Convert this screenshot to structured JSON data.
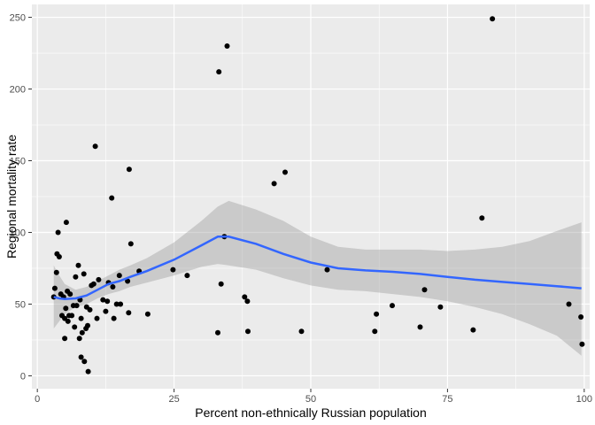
{
  "chart_data": {
    "type": "scatter",
    "title": "",
    "xlabel": "Percent non-ethnically Russian population",
    "ylabel": "Regional mortality rate",
    "xlim": [
      -1,
      101
    ],
    "ylim": [
      -9,
      259
    ],
    "x_ticks": [
      0,
      25,
      50,
      75,
      100
    ],
    "x_tick_labels": [
      "0",
      "25",
      "50",
      "75",
      "100"
    ],
    "y_ticks": [
      0,
      50,
      100,
      150,
      200,
      250
    ],
    "y_tick_labels": [
      "0",
      "50",
      "100",
      "150",
      "200",
      "250"
    ],
    "grid": true,
    "legend": "none",
    "colors": {
      "panel": "#ebebeb",
      "grid_major": "#ffffff",
      "points": "#000000",
      "smooth_line": "#3366ff",
      "ribbon": "#999999"
    },
    "points": [
      {
        "x": 3.0,
        "y": 55
      },
      {
        "x": 3.2,
        "y": 61
      },
      {
        "x": 3.5,
        "y": 72
      },
      {
        "x": 3.6,
        "y": 85
      },
      {
        "x": 3.8,
        "y": 100
      },
      {
        "x": 4.0,
        "y": 83
      },
      {
        "x": 4.3,
        "y": 57
      },
      {
        "x": 4.5,
        "y": 42
      },
      {
        "x": 4.8,
        "y": 55
      },
      {
        "x": 5.0,
        "y": 40
      },
      {
        "x": 5.2,
        "y": 47
      },
      {
        "x": 5.3,
        "y": 107
      },
      {
        "x": 5.5,
        "y": 59
      },
      {
        "x": 5.6,
        "y": 38
      },
      {
        "x": 5.8,
        "y": 42
      },
      {
        "x": 5.0,
        "y": 26
      },
      {
        "x": 6.0,
        "y": 57
      },
      {
        "x": 6.3,
        "y": 42
      },
      {
        "x": 6.6,
        "y": 49
      },
      {
        "x": 6.8,
        "y": 34
      },
      {
        "x": 7.0,
        "y": 69
      },
      {
        "x": 7.2,
        "y": 49
      },
      {
        "x": 7.5,
        "y": 77
      },
      {
        "x": 7.7,
        "y": 26
      },
      {
        "x": 7.8,
        "y": 53
      },
      {
        "x": 8.0,
        "y": 40
      },
      {
        "x": 8.0,
        "y": 13
      },
      {
        "x": 8.2,
        "y": 30
      },
      {
        "x": 8.5,
        "y": 71
      },
      {
        "x": 8.6,
        "y": 10
      },
      {
        "x": 8.9,
        "y": 33
      },
      {
        "x": 9.0,
        "y": 48
      },
      {
        "x": 9.2,
        "y": 35
      },
      {
        "x": 9.3,
        "y": 3
      },
      {
        "x": 9.6,
        "y": 46
      },
      {
        "x": 9.9,
        "y": 63
      },
      {
        "x": 10.3,
        "y": 64
      },
      {
        "x": 10.6,
        "y": 160
      },
      {
        "x": 10.9,
        "y": 40
      },
      {
        "x": 11.2,
        "y": 67
      },
      {
        "x": 12.0,
        "y": 53
      },
      {
        "x": 12.5,
        "y": 45
      },
      {
        "x": 12.8,
        "y": 52
      },
      {
        "x": 13.0,
        "y": 65
      },
      {
        "x": 13.6,
        "y": 124
      },
      {
        "x": 13.8,
        "y": 62
      },
      {
        "x": 14.0,
        "y": 40
      },
      {
        "x": 14.5,
        "y": 50
      },
      {
        "x": 15.0,
        "y": 70
      },
      {
        "x": 15.2,
        "y": 50
      },
      {
        "x": 16.5,
        "y": 66
      },
      {
        "x": 16.7,
        "y": 44
      },
      {
        "x": 16.8,
        "y": 144
      },
      {
        "x": 17.1,
        "y": 92
      },
      {
        "x": 18.6,
        "y": 73
      },
      {
        "x": 20.2,
        "y": 43
      },
      {
        "x": 24.8,
        "y": 74
      },
      {
        "x": 27.4,
        "y": 70
      },
      {
        "x": 33.0,
        "y": 30
      },
      {
        "x": 33.2,
        "y": 212
      },
      {
        "x": 33.6,
        "y": 64
      },
      {
        "x": 34.2,
        "y": 97
      },
      {
        "x": 34.7,
        "y": 230
      },
      {
        "x": 37.9,
        "y": 55
      },
      {
        "x": 38.4,
        "y": 52
      },
      {
        "x": 38.5,
        "y": 31
      },
      {
        "x": 43.3,
        "y": 134
      },
      {
        "x": 45.3,
        "y": 142
      },
      {
        "x": 48.3,
        "y": 31
      },
      {
        "x": 53.0,
        "y": 74
      },
      {
        "x": 61.7,
        "y": 31
      },
      {
        "x": 62.0,
        "y": 43
      },
      {
        "x": 64.9,
        "y": 49
      },
      {
        "x": 70.0,
        "y": 34
      },
      {
        "x": 70.8,
        "y": 60
      },
      {
        "x": 73.7,
        "y": 48
      },
      {
        "x": 79.7,
        "y": 32
      },
      {
        "x": 81.3,
        "y": 110
      },
      {
        "x": 83.2,
        "y": 249
      },
      {
        "x": 97.2,
        "y": 50
      },
      {
        "x": 99.4,
        "y": 41
      },
      {
        "x": 99.6,
        "y": 22
      }
    ],
    "smooth": {
      "method": "loess",
      "x": [
        3,
        4,
        5,
        7,
        9,
        11,
        13,
        15,
        17,
        20,
        25,
        30,
        33,
        35,
        40,
        45,
        50,
        55,
        60,
        65,
        70,
        75,
        80,
        85,
        90,
        95,
        99.5
      ],
      "y": [
        55,
        54,
        53.5,
        54,
        56,
        60,
        64,
        66,
        69,
        73,
        81,
        91,
        97,
        97,
        92,
        85,
        79,
        75,
        73.5,
        72.5,
        71,
        69,
        67,
        65.5,
        64,
        62.5,
        61
      ],
      "lower": [
        33,
        38,
        43,
        48,
        50,
        54,
        57,
        59,
        62,
        65,
        70,
        76,
        78,
        77,
        74,
        68,
        63,
        60,
        59,
        57,
        55,
        52,
        48,
        43,
        36,
        28,
        14
      ],
      "upper": [
        77,
        70,
        64,
        60,
        62,
        66,
        70,
        74,
        77,
        82,
        93,
        108,
        118,
        122,
        116,
        108,
        97,
        90,
        88,
        88,
        88,
        87,
        88,
        90,
        94,
        101,
        107
      ]
    }
  }
}
